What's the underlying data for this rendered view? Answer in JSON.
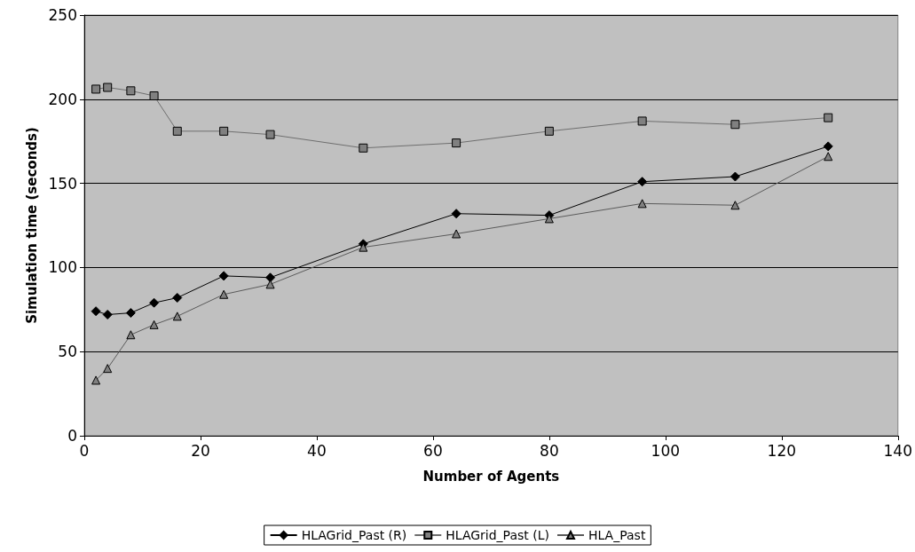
{
  "chart_data": {
    "type": "line",
    "xlabel": "Number of Agents",
    "ylabel": "Simulation time (seconds)",
    "x": [
      2,
      4,
      8,
      12,
      16,
      24,
      32,
      48,
      64,
      80,
      96,
      112,
      128
    ],
    "series": [
      {
        "name": "HLAGrid_Past (R)",
        "color": "#000000",
        "marker": "diamond",
        "values": [
          74,
          72,
          73,
          79,
          82,
          95,
          94,
          114,
          132,
          131,
          151,
          154,
          172
        ]
      },
      {
        "name": "HLAGrid_Past (L)",
        "color": "#6e6e6e",
        "marker": "square",
        "values": [
          206,
          207,
          205,
          202,
          181,
          181,
          179,
          171,
          174,
          181,
          187,
          185,
          189
        ]
      },
      {
        "name": "HLA_Past",
        "color": "#5a5a5a",
        "marker": "triangle",
        "values": [
          33,
          40,
          60,
          66,
          71,
          84,
          90,
          112,
          120,
          129,
          138,
          137,
          166
        ]
      }
    ],
    "xlim": [
      0,
      140
    ],
    "xticks": [
      0,
      20,
      40,
      60,
      80,
      100,
      120,
      140
    ],
    "ylim": [
      0,
      250
    ],
    "yticks": [
      0,
      50,
      100,
      150,
      200,
      250
    ],
    "grid": "y",
    "legend": "bottom",
    "line_style": "solid"
  }
}
